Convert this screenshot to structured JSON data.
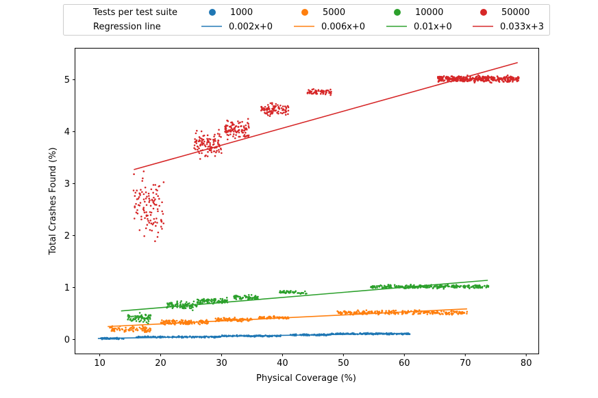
{
  "chart_data": {
    "type": "scatter",
    "title": "",
    "xlabel": "Physical Coverage  (%)",
    "ylabel": "Total Crashes Found (%)",
    "xlim": [
      6,
      82
    ],
    "ylim": [
      -0.27,
      5.6
    ],
    "xticks": [
      10,
      20,
      30,
      40,
      50,
      60,
      70,
      80
    ],
    "yticks": [
      0,
      1,
      2,
      3,
      4,
      5
    ],
    "grid": false,
    "legend": {
      "placement": "top, outside plot",
      "row_titles": [
        "Tests per test suite",
        "Regression line"
      ]
    },
    "series": [
      {
        "name": "1000",
        "color": "#1f77b4",
        "regression_label": "0.002x+0",
        "regression_line": [
          [
            9.7,
            0.02
          ],
          [
            60.5,
            0.12
          ]
        ],
        "clusters": [
          {
            "x": [
              10,
              14
            ],
            "y": [
              0.0,
              0.04
            ],
            "n": 70
          },
          {
            "x": [
              16,
              30
            ],
            "y": [
              0.03,
              0.07
            ],
            "n": 150
          },
          {
            "x": [
              30,
              40
            ],
            "y": [
              0.05,
              0.09
            ],
            "n": 100
          },
          {
            "x": [
              41,
              48
            ],
            "y": [
              0.07,
              0.11
            ],
            "n": 90
          },
          {
            "x": [
              48,
              61
            ],
            "y": [
              0.09,
              0.13
            ],
            "n": 180
          }
        ]
      },
      {
        "name": "5000",
        "color": "#ff7f0e",
        "regression_label": "0.006x+0",
        "regression_line": [
          [
            11.3,
            0.25
          ],
          [
            70.3,
            0.59
          ]
        ],
        "clusters": [
          {
            "x": [
              11.5,
              18.5
            ],
            "y": [
              0.1,
              0.28
            ],
            "n": 80
          },
          {
            "x": [
              20,
              28
            ],
            "y": [
              0.26,
              0.4
            ],
            "n": 130
          },
          {
            "x": [
              29,
              35
            ],
            "y": [
              0.33,
              0.43
            ],
            "n": 80
          },
          {
            "x": [
              36,
              41
            ],
            "y": [
              0.38,
              0.46
            ],
            "n": 70
          },
          {
            "x": [
              49,
              70.3
            ],
            "y": [
              0.46,
              0.58
            ],
            "n": 260
          }
        ]
      },
      {
        "name": "10000",
        "color": "#2ca02c",
        "regression_label": "0.01x+0",
        "regression_line": [
          [
            13.5,
            0.55
          ],
          [
            73.7,
            1.14
          ]
        ],
        "clusters": [
          {
            "x": [
              14.5,
              18.5
            ],
            "y": [
              0.28,
              0.55
            ],
            "n": 70
          },
          {
            "x": [
              21,
              26
            ],
            "y": [
              0.55,
              0.76
            ],
            "n": 90
          },
          {
            "x": [
              26,
              31
            ],
            "y": [
              0.66,
              0.82
            ],
            "n": 90
          },
          {
            "x": [
              32,
              36
            ],
            "y": [
              0.76,
              0.87
            ],
            "n": 60
          },
          {
            "x": [
              39.5,
              44
            ],
            "y": [
              0.86,
              0.95
            ],
            "n": 50
          },
          {
            "x": [
              54.5,
              74
            ],
            "y": [
              0.97,
              1.07
            ],
            "n": 240
          }
        ]
      },
      {
        "name": "50000",
        "color": "#d62728",
        "regression_label": "0.033x+3",
        "regression_line": [
          [
            15.6,
            3.27
          ],
          [
            78.6,
            5.33
          ]
        ],
        "clusters": [
          {
            "x": [
              15.5,
              20.5
            ],
            "y": [
              1.65,
              3.35
            ],
            "n": 110
          },
          {
            "x": [
              25.5,
              30
            ],
            "y": [
              3.4,
              4.1
            ],
            "n": 110
          },
          {
            "x": [
              30.5,
              34.5
            ],
            "y": [
              3.8,
              4.3
            ],
            "n": 100
          },
          {
            "x": [
              36.5,
              41
            ],
            "y": [
              4.25,
              4.6
            ],
            "n": 90
          },
          {
            "x": [
              44,
              48
            ],
            "y": [
              4.68,
              4.85
            ],
            "n": 60
          },
          {
            "x": [
              65.5,
              78.8
            ],
            "y": [
              4.93,
              5.1
            ],
            "n": 380
          }
        ]
      }
    ]
  }
}
